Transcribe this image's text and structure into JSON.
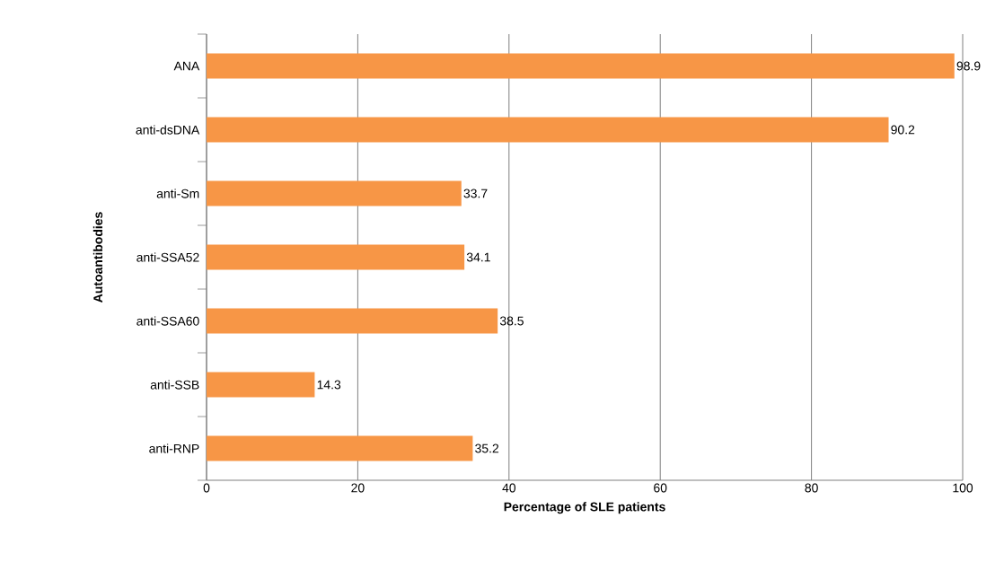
{
  "chart_data": {
    "type": "bar",
    "orientation": "horizontal",
    "categories": [
      "ANA",
      "anti-dsDNA",
      "anti-Sm",
      "anti-SSA52",
      "anti-SSA60",
      "anti-SSB",
      "anti-RNP"
    ],
    "values": [
      98.9,
      90.2,
      33.7,
      34.1,
      38.5,
      14.3,
      35.2
    ],
    "color": "#f79646",
    "xlim": [
      0,
      100
    ],
    "xticks": [
      0,
      20,
      40,
      60,
      80,
      100
    ],
    "grid": "x",
    "data_labels": true,
    "xlabel": "Percentage of SLE patients",
    "ylabel": "Autoantibodies"
  }
}
